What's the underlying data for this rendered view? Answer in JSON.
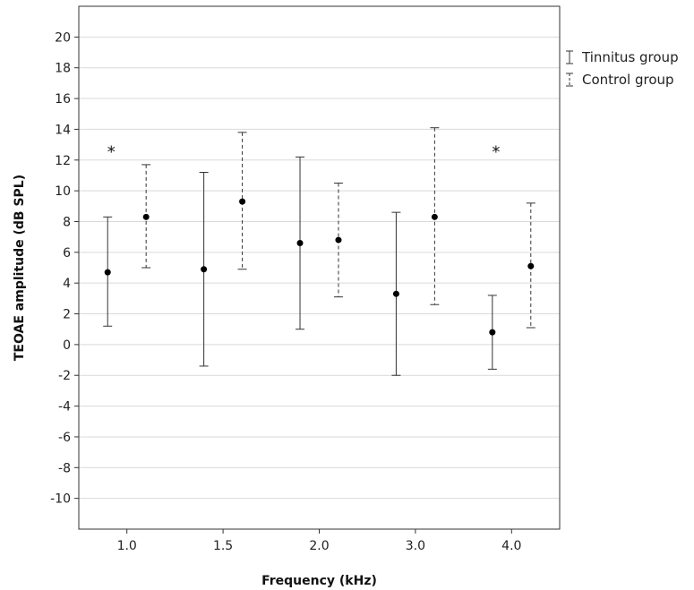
{
  "chart_data": {
    "type": "errorbar",
    "categories": [
      "1.0",
      "1.5",
      "2.0",
      "3.0",
      "4.0"
    ],
    "xlabel": "Frequency (kHz)",
    "ylabel": "TEOAE amplitude (dB SPL)",
    "ylim": [
      -12,
      22
    ],
    "yticks": [
      -10,
      -8,
      -6,
      -4,
      -2,
      0,
      2,
      4,
      6,
      8,
      10,
      12,
      14,
      16,
      18,
      20
    ],
    "grid": true,
    "legend_position": "top-right-outside",
    "series": [
      {
        "name": "Tinnitus group",
        "line_style": "solid",
        "mean": [
          4.7,
          4.9,
          6.6,
          3.3,
          0.8
        ],
        "lower": [
          1.2,
          -1.4,
          1.0,
          -2.0,
          -1.6
        ],
        "upper": [
          8.3,
          11.2,
          12.2,
          8.6,
          3.2
        ]
      },
      {
        "name": "Control group",
        "line_style": "dashed",
        "mean": [
          8.3,
          9.3,
          6.8,
          8.3,
          5.1
        ],
        "lower": [
          5.0,
          4.9,
          3.1,
          2.6,
          1.1
        ],
        "upper": [
          11.7,
          13.8,
          10.5,
          14.1,
          9.2
        ]
      }
    ],
    "annotations": [
      {
        "text": "*",
        "category": "1.0",
        "y": 12.6
      },
      {
        "text": "*",
        "category": "4.0",
        "y": 12.6
      }
    ]
  }
}
